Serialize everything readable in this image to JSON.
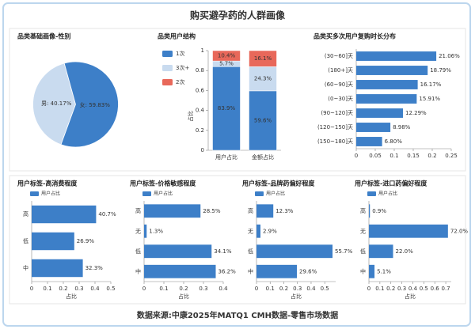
{
  "title": "购买避孕药的人群画像",
  "source": "数据来源:中康2025年MATQ1 CMH数据-零售市场数据",
  "chart_data": [
    {
      "type": "pie",
      "title": "品类基础画像-性别",
      "categories": [
        "男",
        "女"
      ],
      "values": [
        40.17,
        59.83
      ],
      "value_labels": [
        "男: 40.17%",
        "女: 59.83%"
      ],
      "colors": [
        "#c9dbef",
        "#3d7fc8"
      ]
    },
    {
      "type": "stacked-bar",
      "title": "品类用户结构",
      "y_label": "占比",
      "categories": [
        "用户占比",
        "金额占比"
      ],
      "series": [
        {
          "name": "1次",
          "color": "#3d7fc8",
          "values": [
            0.839,
            0.596
          ],
          "value_labels": [
            "83.9%",
            "59.6%"
          ]
        },
        {
          "name": "3次+",
          "color": "#c9dbef",
          "values": [
            0.057,
            0.243
          ],
          "value_labels": [
            "5.7%",
            "24.3%"
          ]
        },
        {
          "name": "2次",
          "color": "#e8685a",
          "values": [
            0.104,
            0.161
          ],
          "value_labels": [
            "10.4%",
            "16.1%"
          ]
        }
      ],
      "ylim": [
        0,
        1
      ],
      "yticks": [
        0,
        0.2,
        0.4,
        0.6,
        0.8,
        1
      ]
    },
    {
      "type": "hbar",
      "title": "品类买多次用户复购时长分布",
      "categories": [
        "(30~60]天",
        "(180+]天",
        "(60~90]天",
        "(0~30]天",
        "(90~120]天",
        "(120~150]天",
        "(150~180]天"
      ],
      "values": [
        0.2106,
        0.1879,
        0.1617,
        0.1591,
        0.1229,
        0.0898,
        0.068
      ],
      "value_labels": [
        "21.06%",
        "18.79%",
        "16.17%",
        "15.91%",
        "12.29%",
        "8.98%",
        "6.80%"
      ],
      "color": "#3d7fc8",
      "xlim": [
        0,
        0.25
      ],
      "xticks": [
        0,
        0.05,
        0.1,
        0.15,
        0.2,
        0.25
      ]
    },
    {
      "type": "hbar",
      "title": "用户标签-高消费程度",
      "x_label": "占比",
      "categories": [
        "高",
        "低",
        "中"
      ],
      "series": [
        {
          "name": "用户占比",
          "color": "#3d7fc8",
          "values": [
            0.407,
            0.269,
            0.323
          ],
          "value_labels": [
            "40.7%",
            "26.9%",
            "32.3%"
          ]
        }
      ],
      "xlim": [
        0,
        0.5
      ],
      "xticks": [
        0,
        0.1,
        0.2,
        0.3,
        0.4,
        0.5
      ]
    },
    {
      "type": "hbar",
      "title": "用户标签-价格敏感程度",
      "x_label": "占比",
      "categories": [
        "高",
        "无",
        "低",
        "中"
      ],
      "series": [
        {
          "name": "用户占比",
          "color": "#3d7fc8",
          "values": [
            0.285,
            0.013,
            0.341,
            0.362
          ],
          "value_labels": [
            "28.5%",
            "1.3%",
            "34.1%",
            "36.2%"
          ]
        }
      ],
      "xlim": [
        0,
        0.4
      ],
      "xticks": [
        0,
        0.1,
        0.2,
        0.3,
        0.4
      ]
    },
    {
      "type": "hbar",
      "title": "用户标签-品牌药偏好程度",
      "x_label": "占比",
      "categories": [
        "高",
        "无",
        "低",
        "中"
      ],
      "series": [
        {
          "name": "用户占比",
          "color": "#3d7fc8",
          "values": [
            0.123,
            0.029,
            0.557,
            0.296
          ],
          "value_labels": [
            "12.3%",
            "2.9%",
            "55.7%",
            "29.6%"
          ]
        }
      ],
      "xlim": [
        0,
        0.58
      ],
      "xticks": [
        0,
        0.1,
        0.2,
        0.3,
        0.4,
        0.5
      ]
    },
    {
      "type": "hbar",
      "title": "用户标签-进口药偏好程度",
      "x_label": "占比",
      "categories": [
        "高",
        "无",
        "低",
        "中"
      ],
      "series": [
        {
          "name": "用户占比",
          "color": "#3d7fc8",
          "values": [
            0.009,
            0.72,
            0.22,
            0.051
          ],
          "value_labels": [
            "0.9%",
            "72.0%",
            "22.0%",
            "5.1%"
          ]
        }
      ],
      "xlim": [
        0,
        0.75
      ],
      "xticks": [
        0,
        0.1,
        0.2,
        0.3,
        0.4,
        0.5,
        0.6,
        0.7
      ]
    }
  ]
}
